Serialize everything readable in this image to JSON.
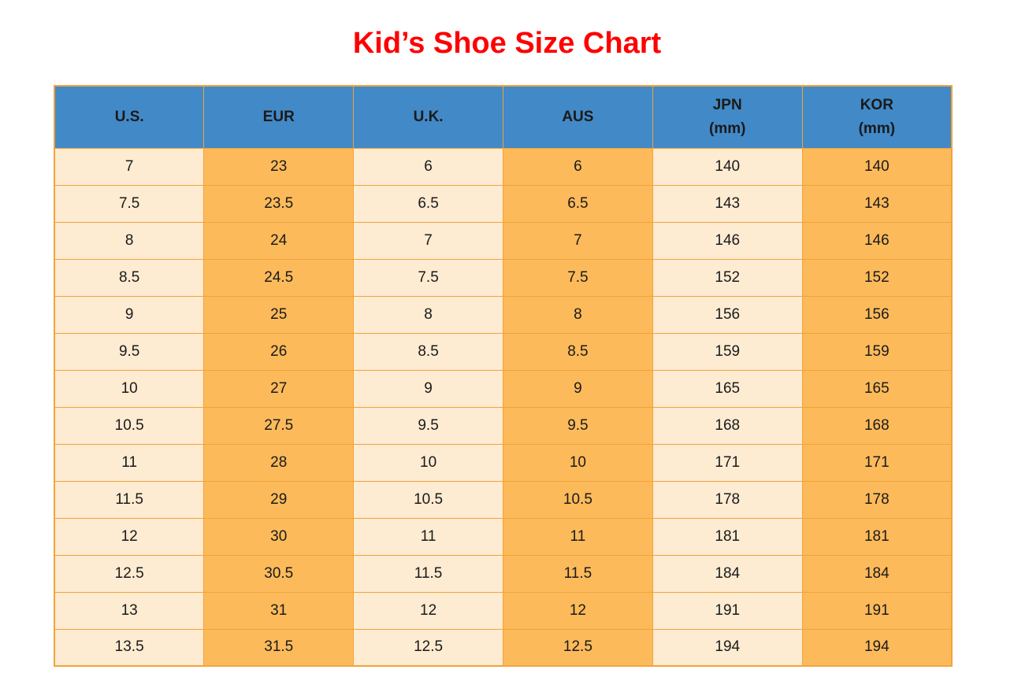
{
  "page": {
    "title": "Kid’s Shoe Size Chart"
  },
  "colors": {
    "title_red": "#ff0000",
    "header_blue": "#4289c7",
    "column_cream": "#fdebd2",
    "column_orange": "#fcba5b",
    "grid_border": "#f2a33a",
    "text": "#1a1a1a",
    "background": "#ffffff"
  },
  "chart_data": {
    "type": "table",
    "title": "Kid’s Shoe Size Chart",
    "columns": [
      "U.S.",
      "EUR",
      "U.K.",
      "AUS",
      "JPN (mm)",
      "KOR (mm)"
    ],
    "column_labels": [
      {
        "line1": "U.S.",
        "line2": ""
      },
      {
        "line1": "EUR",
        "line2": ""
      },
      {
        "line1": "U.K.",
        "line2": ""
      },
      {
        "line1": "AUS",
        "line2": ""
      },
      {
        "line1": "JPN",
        "line2": "(mm)"
      },
      {
        "line1": "KOR",
        "line2": "(mm)"
      }
    ],
    "rows": [
      [
        "7",
        "23",
        "6",
        "6",
        "140",
        "140"
      ],
      [
        "7.5",
        "23.5",
        "6.5",
        "6.5",
        "143",
        "143"
      ],
      [
        "8",
        "24",
        "7",
        "7",
        "146",
        "146"
      ],
      [
        "8.5",
        "24.5",
        "7.5",
        "7.5",
        "152",
        "152"
      ],
      [
        "9",
        "25",
        "8",
        "8",
        "156",
        "156"
      ],
      [
        "9.5",
        "26",
        "8.5",
        "8.5",
        "159",
        "159"
      ],
      [
        "10",
        "27",
        "9",
        "9",
        "165",
        "165"
      ],
      [
        "10.5",
        "27.5",
        "9.5",
        "9.5",
        "168",
        "168"
      ],
      [
        "11",
        "28",
        "10",
        "10",
        "171",
        "171"
      ],
      [
        "11.5",
        "29",
        "10.5",
        "10.5",
        "178",
        "178"
      ],
      [
        "12",
        "30",
        "11",
        "11",
        "181",
        "181"
      ],
      [
        "12.5",
        "30.5",
        "11.5",
        "11.5",
        "184",
        "184"
      ],
      [
        "13",
        "31",
        "12",
        "12",
        "191",
        "191"
      ],
      [
        "13.5",
        "31.5",
        "12.5",
        "12.5",
        "194",
        "194"
      ]
    ]
  }
}
